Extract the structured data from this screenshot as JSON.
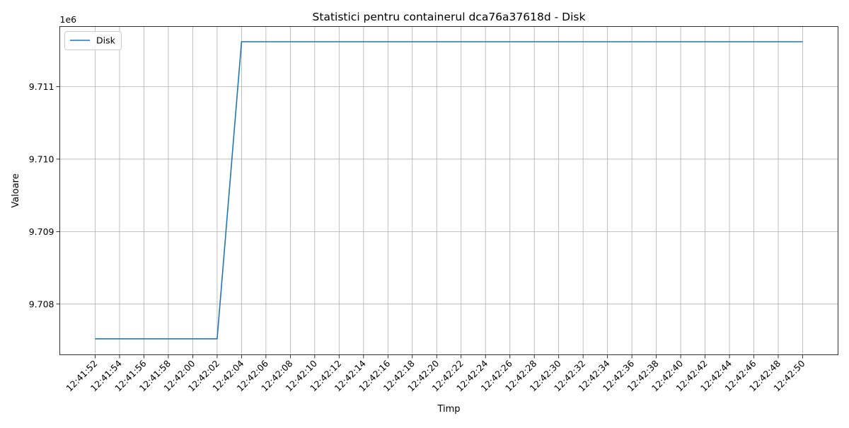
{
  "chart_data": {
    "type": "line",
    "title": "Statistici pentru containerul dca76a37618d - Disk",
    "xlabel": "Timp",
    "ylabel": "Valoare",
    "y_offset_label": "1e6",
    "y_scale": 1000000,
    "ylim": [
      9707300,
      9711830
    ],
    "y_ticks": [
      9708000,
      9709000,
      9710000,
      9711000
    ],
    "y_tick_labels": [
      "9.708",
      "9.709",
      "9.710",
      "9.711"
    ],
    "grid": true,
    "legend_position": "upper-left",
    "x": [
      "12:41:52",
      "12:41:54",
      "12:41:56",
      "12:41:58",
      "12:42:00",
      "12:42:02",
      "12:42:04",
      "12:42:06",
      "12:42:08",
      "12:42:10",
      "12:42:12",
      "12:42:14",
      "12:42:16",
      "12:42:18",
      "12:42:20",
      "12:42:22",
      "12:42:24",
      "12:42:26",
      "12:42:28",
      "12:42:30",
      "12:42:32",
      "12:42:34",
      "12:42:36",
      "12:42:38",
      "12:42:40",
      "12:42:42",
      "12:42:44",
      "12:42:46",
      "12:42:48",
      "12:42:50"
    ],
    "series": [
      {
        "name": "Disk",
        "color": "#1f77b4",
        "values": [
          9707520,
          9707520,
          9707520,
          9707520,
          9707520,
          9707520,
          9711620,
          9711620,
          9711620,
          9711620,
          9711620,
          9711620,
          9711620,
          9711620,
          9711620,
          9711620,
          9711620,
          9711620,
          9711620,
          9711620,
          9711620,
          9711620,
          9711620,
          9711620,
          9711620,
          9711620,
          9711620,
          9711620,
          9711620,
          9711620
        ]
      }
    ]
  }
}
